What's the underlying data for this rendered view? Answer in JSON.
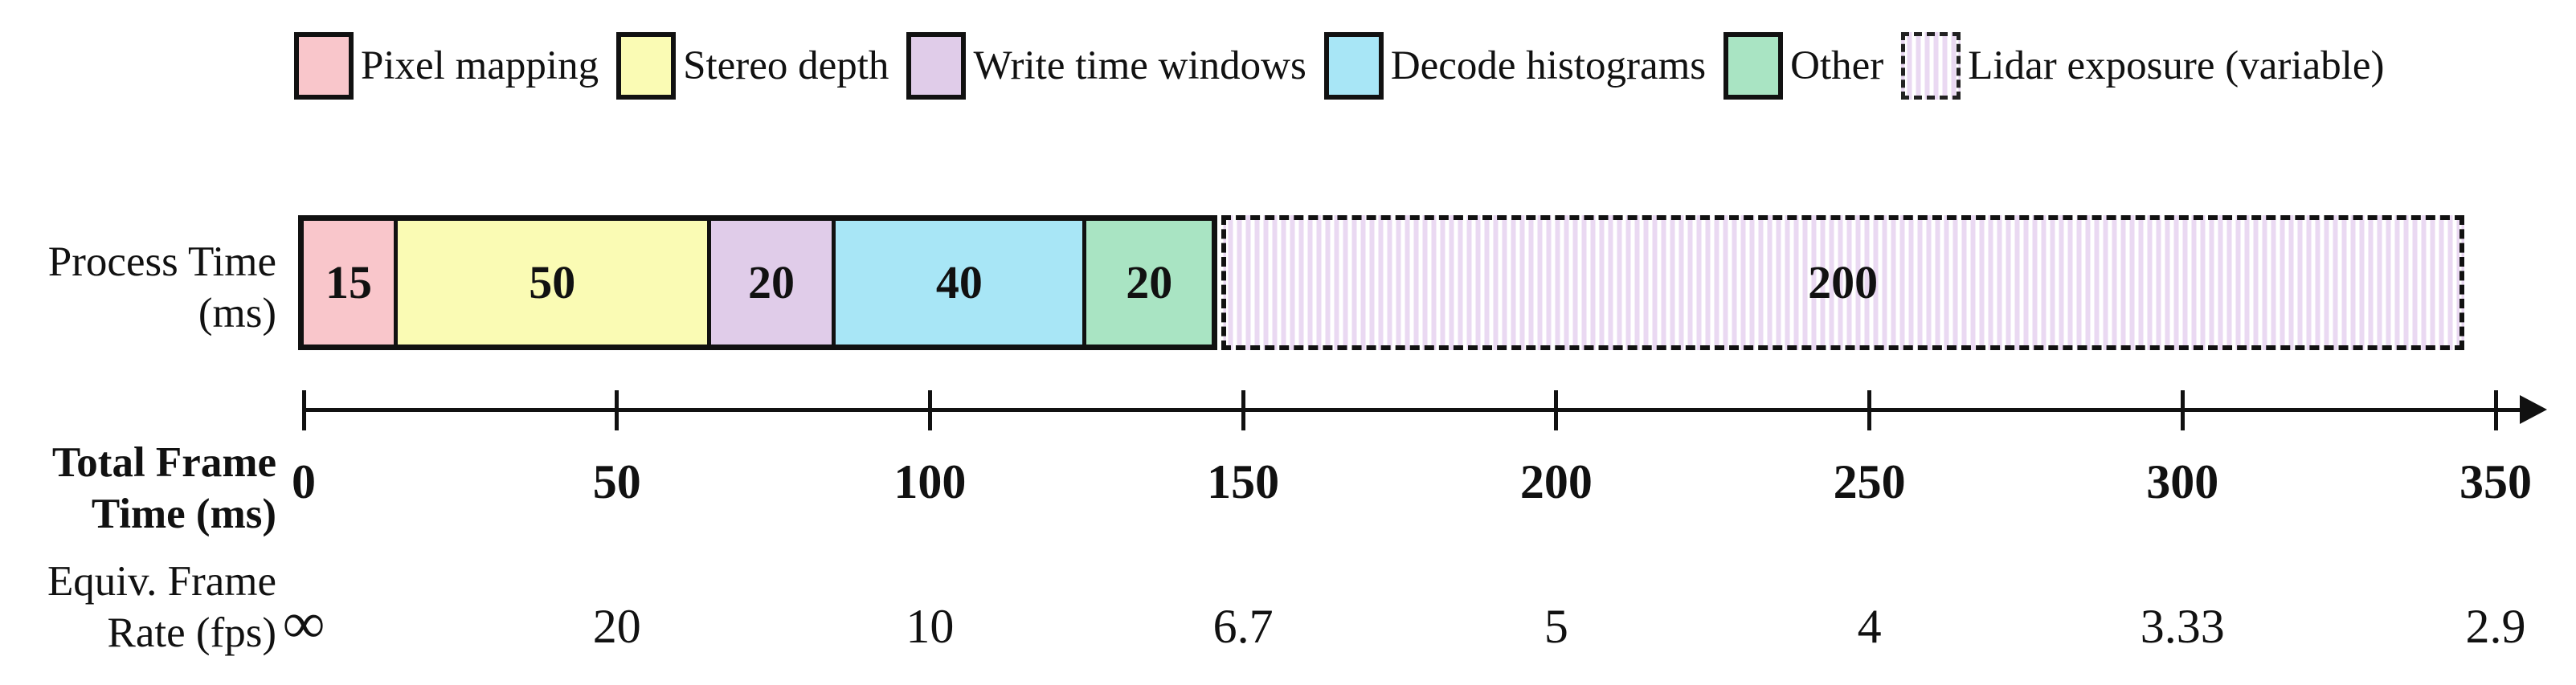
{
  "legend": {
    "items": [
      {
        "label": "Pixel mapping",
        "color": "#f9c6cb",
        "pattern": "solid"
      },
      {
        "label": "Stereo depth",
        "color": "#fafbb4",
        "pattern": "solid"
      },
      {
        "label": "Write time windows",
        "color": "#e0cce9",
        "pattern": "solid"
      },
      {
        "label": "Decode histograms",
        "color": "#a8e6f6",
        "pattern": "solid"
      },
      {
        "label": "Other",
        "color": "#a9e4c3",
        "pattern": "solid"
      },
      {
        "label": "Lidar exposure (variable)",
        "color": "#ead9f2",
        "pattern": "striped-dashed"
      }
    ]
  },
  "row_labels": {
    "process_time": [
      "Process Time",
      "(ms)"
    ],
    "total_frame_time": [
      "Total Frame",
      "Time (ms)"
    ],
    "equiv_frame_rate": [
      "Equiv. Frame",
      "Rate (fps)"
    ]
  },
  "chart_data": {
    "type": "bar",
    "orientation": "horizontal-timeline",
    "row_title": "Process Time (ms)",
    "x_axis_title": "Total Frame Time (ms)",
    "secondary_axis_title": "Equiv. Frame Rate (fps)",
    "segments": [
      {
        "name": "Pixel mapping",
        "value_ms": 15,
        "label": "15",
        "color": "#f9c6cb",
        "pattern": "solid"
      },
      {
        "name": "Stereo depth",
        "value_ms": 50,
        "label": "50",
        "color": "#fafbb4",
        "pattern": "solid"
      },
      {
        "name": "Write time windows",
        "value_ms": 20,
        "label": "20",
        "color": "#e0cce9",
        "pattern": "solid"
      },
      {
        "name": "Decode histograms",
        "value_ms": 40,
        "label": "40",
        "color": "#a8e6f6",
        "pattern": "solid"
      },
      {
        "name": "Other",
        "value_ms": 20,
        "label": "20",
        "color": "#a9e4c3",
        "pattern": "solid"
      },
      {
        "name": "Lidar exposure (variable)",
        "value_ms": 200,
        "label": "200",
        "color": "#ead9f2",
        "pattern": "striped-dashed"
      }
    ],
    "total_ms": 345,
    "axis": {
      "min": 0,
      "max": 350,
      "tick_step": 50,
      "ticks": [
        0,
        50,
        100,
        150,
        200,
        250,
        300,
        350
      ],
      "arrow": "right"
    },
    "frame_rate_values": [
      "∞",
      "20",
      "10",
      "6.7",
      "5",
      "4",
      "3.33",
      "2.9"
    ],
    "colors": {
      "outline": "#111111",
      "background": "#ffffff"
    }
  }
}
